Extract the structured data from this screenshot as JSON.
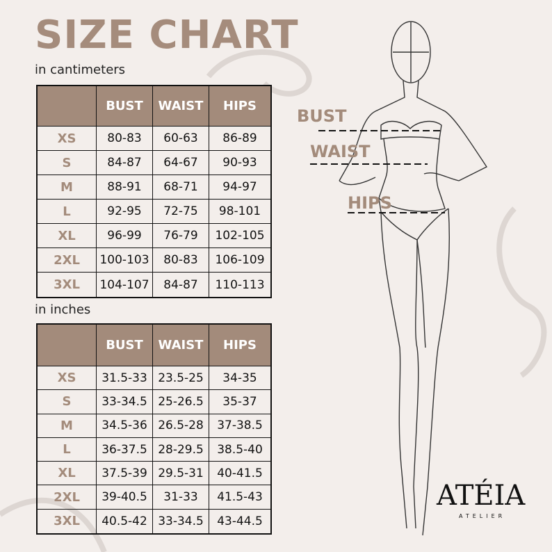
{
  "title": "SIZE CHART",
  "tables": [
    {
      "caption": "in cantimeters",
      "columns": [
        "BUST",
        "WAIST",
        "HIPS"
      ],
      "rows": [
        [
          "XS",
          "80-83",
          "60-63",
          "86-89"
        ],
        [
          "S",
          "84-87",
          "64-67",
          "90-93"
        ],
        [
          "M",
          "88-91",
          "68-71",
          "94-97"
        ],
        [
          "L",
          "92-95",
          "72-75",
          "98-101"
        ],
        [
          "XL",
          "96-99",
          "76-79",
          "102-105"
        ],
        [
          "2XL",
          "100-103",
          "80-83",
          "106-109"
        ],
        [
          "3XL",
          "104-107",
          "84-87",
          "110-113"
        ]
      ]
    },
    {
      "caption": "in inches",
      "columns": [
        "BUST",
        "WAIST",
        "HIPS"
      ],
      "rows": [
        [
          "XS",
          "31.5-33",
          "23.5-25",
          "34-35"
        ],
        [
          "S",
          "33-34.5",
          "25-26.5",
          "35-37"
        ],
        [
          "M",
          "34.5-36",
          "26.5-28",
          "37-38.5"
        ],
        [
          "L",
          "36-37.5",
          "28-29.5",
          "38.5-40"
        ],
        [
          "XL",
          "37.5-39",
          "29.5-31",
          "40-41.5"
        ],
        [
          "2XL",
          "39-40.5",
          "31-33",
          "41.5-43"
        ],
        [
          "3XL",
          "40.5-42",
          "33-34.5",
          "43-44.5"
        ]
      ]
    }
  ],
  "figure_labels": [
    "BUST",
    "WAIST",
    "HIPS"
  ],
  "brand": {
    "name": "ATÉIA",
    "tagline": "ATELIER"
  }
}
